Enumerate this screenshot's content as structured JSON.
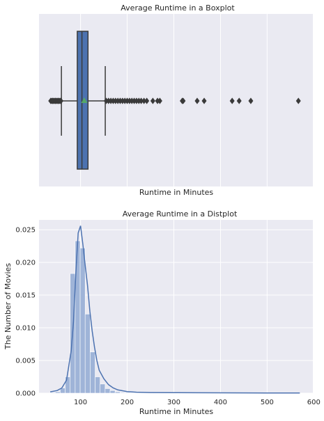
{
  "chart_data": [
    {
      "type": "boxplot",
      "title": "Average Runtime in a Boxplot",
      "xlabel": "Runtime in Minutes",
      "ylabel": "",
      "xlim": [
        11,
        598
      ],
      "grid": true,
      "stats": {
        "whisker_low": 59,
        "q1": 93,
        "median": 103,
        "mean": 108,
        "q3": 116,
        "whisker_high": 153
      },
      "outliers": [
        36,
        38,
        40,
        42,
        44,
        46,
        48,
        50,
        52,
        54,
        56,
        58,
        155,
        160,
        165,
        170,
        175,
        180,
        185,
        190,
        195,
        200,
        205,
        210,
        215,
        220,
        225,
        230,
        236,
        242,
        255,
        265,
        270,
        318,
        320,
        350,
        365,
        425,
        440,
        465,
        567
      ]
    },
    {
      "type": "histogram",
      "title": "Average Runtime in a Distplot",
      "xlabel": "Runtime in Minutes",
      "ylabel": "The Number of Movies",
      "xlim": [
        11,
        598
      ],
      "ylim": [
        0,
        0.0265
      ],
      "xticks": [
        100,
        200,
        300,
        400,
        500,
        600
      ],
      "yticks": [
        0.0,
        0.005,
        0.01,
        0.015,
        0.02,
        0.025
      ],
      "grid": true,
      "bins": {
        "edges": [
          35,
          45.7,
          56.4,
          67.1,
          77.8,
          88.5,
          99.2,
          109.9,
          120.6,
          131.3,
          142,
          152.7,
          163.4,
          174.1,
          184.8,
          195.5,
          206.2,
          216.9,
          227.6,
          238.3,
          249,
          259.7,
          270.4,
          281.1,
          291.8,
          302.5,
          313.2,
          323.9,
          334.6,
          345.3,
          356,
          366.7,
          377.4,
          388.1,
          398.8,
          409.5,
          420.2,
          430.9,
          441.6,
          452.3,
          463,
          473.7,
          484.4,
          495.1,
          505.8,
          516.5,
          527.2,
          537.9,
          548.6,
          559.3,
          570
        ],
        "density": [
          0.0001,
          0.0002,
          0.0008,
          0.0025,
          0.0183,
          0.0233,
          0.0222,
          0.0121,
          0.0063,
          0.0025,
          0.0014,
          0.0007,
          0.0004,
          0.0002,
          0.0001,
          0.0001,
          5e-05,
          4e-05,
          3e-05,
          3e-05,
          2e-05,
          2e-05,
          1e-05,
          1e-05,
          1e-05,
          1e-05,
          1e-05,
          1e-05,
          1e-05,
          1e-05,
          1e-05,
          1e-05,
          0,
          0,
          0,
          0,
          1e-05,
          0,
          1e-05,
          0,
          0,
          1e-05,
          0,
          0,
          0,
          0,
          0,
          0,
          0,
          1e-05
        ]
      },
      "kde": {
        "x": [
          35,
          50,
          60,
          70,
          80,
          85,
          90,
          95,
          100,
          105,
          110,
          115,
          120,
          125,
          130,
          135,
          140,
          150,
          160,
          170,
          180,
          200,
          220,
          250,
          300,
          350,
          400,
          450,
          500,
          550,
          570
        ],
        "y": [
          0.0002,
          0.0004,
          0.0008,
          0.002,
          0.0065,
          0.011,
          0.0185,
          0.0245,
          0.0256,
          0.0228,
          0.0195,
          0.0165,
          0.0125,
          0.0095,
          0.007,
          0.005,
          0.0035,
          0.0022,
          0.0013,
          0.0008,
          0.0005,
          0.00025,
          0.00015,
          0.0001,
          8e-05,
          6e-05,
          5e-05,
          4e-05,
          3e-05,
          2e-05,
          2e-05
        ]
      }
    }
  ],
  "colors": {
    "background": "#eaeaf2",
    "grid": "#ffffff",
    "box_fill": "#4c72b0",
    "line": "#3a3a3a",
    "mean_marker": "#55a868",
    "hist_fill": "#9fb4d8",
    "kde_line": "#4c72b0"
  }
}
